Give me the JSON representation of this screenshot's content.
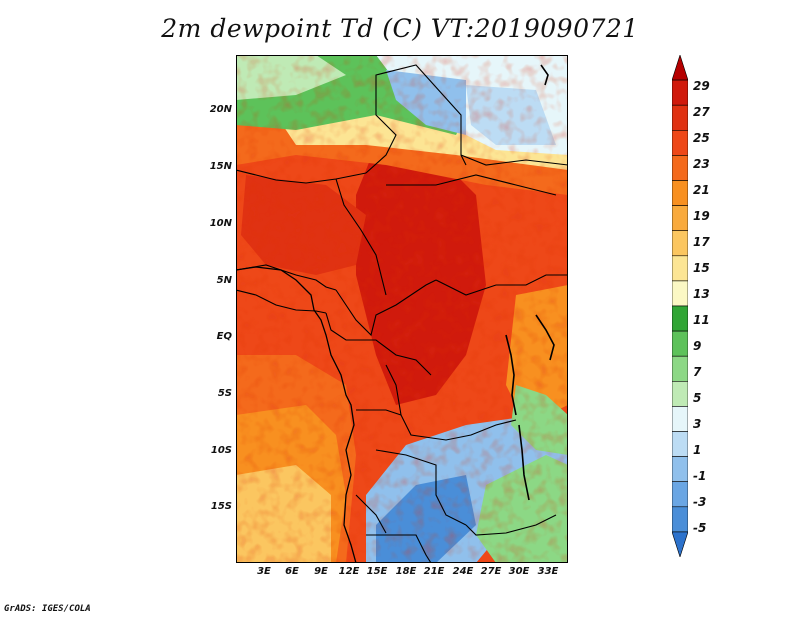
{
  "title": "2m dewpoint Td (C) VT:2019090721",
  "credit": "GrADS: IGES/COLA",
  "map": {
    "lat_range": [
      -20,
      25
    ],
    "lon_range": [
      0,
      35
    ],
    "lat_ticks": [
      "20N",
      "15N",
      "10N",
      "5N",
      "EQ",
      "5S",
      "10S",
      "15S"
    ],
    "lon_ticks": [
      "3E",
      "6E",
      "9E",
      "12E",
      "15E",
      "18E",
      "21E",
      "24E",
      "27E",
      "30E",
      "33E"
    ]
  },
  "colorbar": {
    "labels": [
      "29",
      "27",
      "25",
      "23",
      "21",
      "19",
      "17",
      "15",
      "13",
      "11",
      "9",
      "7",
      "5",
      "3",
      "1",
      "-1",
      "-3",
      "-5"
    ],
    "colors": [
      "#b50000",
      "#d01a0c",
      "#e03212",
      "#ee4818",
      "#f46a1c",
      "#f89020",
      "#f9aa3c",
      "#fbc660",
      "#fce594",
      "#fbf8c4",
      "#31a635",
      "#5dc25a",
      "#8cd885",
      "#bfeab5",
      "#e6f6fa",
      "#bcdcf4",
      "#90c0ec",
      "#6aa6e4",
      "#4a8ed8",
      "#2c72cc"
    ]
  }
}
